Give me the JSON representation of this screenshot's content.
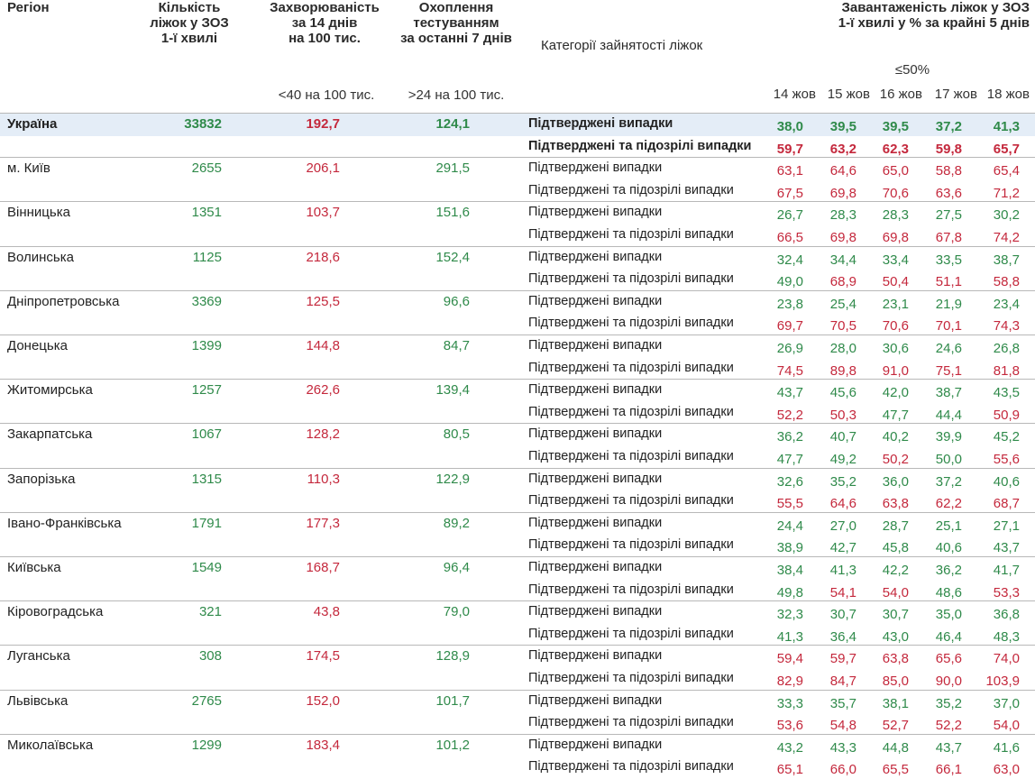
{
  "header": {
    "region": "Регіон",
    "beds": [
      "Кількість",
      "ліжок у ЗОЗ",
      "1-ї хвилі"
    ],
    "incidence": [
      "Захворюваність",
      "за 14 днів",
      "на 100 тис."
    ],
    "testing": [
      "Охоплення",
      "тестуванням",
      "за останні 7 днів"
    ],
    "category": "Категорії зайнятості ліжок",
    "load": [
      "Завантаженість ліжок у ЗОЗ",
      "1-ї хвилі у % за крайні 5 днів"
    ],
    "incidence_threshold": {
      "value": 40,
      "label": "<40 на 100 тис."
    },
    "testing_threshold": {
      "value": 24,
      "label": ">24 на 100 тис."
    },
    "load_threshold": {
      "value": 50,
      "label": "≤50%"
    },
    "dates": [
      "14 жов",
      "15 жов",
      "16 жов",
      "17 жов",
      "18 жов"
    ]
  },
  "colors": {
    "good": "#2f8a4a",
    "bad": "#c4283c"
  },
  "categories": [
    "Підтверджені випадки",
    "Підтверджені та підозрілі випадки"
  ],
  "table": {
    "rows": [
      {
        "region": "Україна",
        "beds": "33832",
        "incidence": "192,7",
        "testing": "124,1",
        "load": [
          [
            "38,0",
            "39,5",
            "39,5",
            "37,2",
            "41,3"
          ],
          [
            "59,7",
            "63,2",
            "62,3",
            "59,8",
            "65,7"
          ]
        ]
      },
      {
        "region": "м. Київ",
        "beds": "2655",
        "incidence": "206,1",
        "testing": "291,5",
        "load": [
          [
            "63,1",
            "64,6",
            "65,0",
            "58,8",
            "65,4"
          ],
          [
            "67,5",
            "69,8",
            "70,6",
            "63,6",
            "71,2"
          ]
        ]
      },
      {
        "region": "Вінницька",
        "beds": "1351",
        "incidence": "103,7",
        "testing": "151,6",
        "load": [
          [
            "26,7",
            "28,3",
            "28,3",
            "27,5",
            "30,2"
          ],
          [
            "66,5",
            "69,8",
            "69,8",
            "67,8",
            "74,2"
          ]
        ]
      },
      {
        "region": "Волинська",
        "beds": "1125",
        "incidence": "218,6",
        "testing": "152,4",
        "load": [
          [
            "32,4",
            "34,4",
            "33,4",
            "33,5",
            "38,7"
          ],
          [
            "49,0",
            "68,9",
            "50,4",
            "51,1",
            "58,8"
          ]
        ]
      },
      {
        "region": "Дніпропетровська",
        "beds": "3369",
        "incidence": "125,5",
        "testing": "96,6",
        "load": [
          [
            "23,8",
            "25,4",
            "23,1",
            "21,9",
            "23,4"
          ],
          [
            "69,7",
            "70,5",
            "70,6",
            "70,1",
            "74,3"
          ]
        ]
      },
      {
        "region": "Донецька",
        "beds": "1399",
        "incidence": "144,8",
        "testing": "84,7",
        "load": [
          [
            "26,9",
            "28,0",
            "30,6",
            "24,6",
            "26,8"
          ],
          [
            "74,5",
            "89,8",
            "91,0",
            "75,1",
            "81,8"
          ]
        ]
      },
      {
        "region": "Житомирська",
        "beds": "1257",
        "incidence": "262,6",
        "testing": "139,4",
        "load": [
          [
            "43,7",
            "45,6",
            "42,0",
            "38,7",
            "43,5"
          ],
          [
            "52,2",
            "50,3",
            "47,7",
            "44,4",
            "50,9"
          ]
        ]
      },
      {
        "region": "Закарпатська",
        "beds": "1067",
        "incidence": "128,2",
        "testing": "80,5",
        "load": [
          [
            "36,2",
            "40,7",
            "40,2",
            "39,9",
            "45,2"
          ],
          [
            "47,7",
            "49,2",
            "50,2",
            "50,0",
            "55,6"
          ]
        ]
      },
      {
        "region": "Запорізька",
        "beds": "1315",
        "incidence": "110,3",
        "testing": "122,9",
        "load": [
          [
            "32,6",
            "35,2",
            "36,0",
            "37,2",
            "40,6"
          ],
          [
            "55,5",
            "64,6",
            "63,8",
            "62,2",
            "68,7"
          ]
        ]
      },
      {
        "region": "Івано-Франківська",
        "beds": "1791",
        "incidence": "177,3",
        "testing": "89,2",
        "load": [
          [
            "24,4",
            "27,0",
            "28,7",
            "25,1",
            "27,1"
          ],
          [
            "38,9",
            "42,7",
            "45,8",
            "40,6",
            "43,7"
          ]
        ]
      },
      {
        "region": "Київська",
        "beds": "1549",
        "incidence": "168,7",
        "testing": "96,4",
        "load": [
          [
            "38,4",
            "41,3",
            "42,2",
            "36,2",
            "41,7"
          ],
          [
            "49,8",
            "54,1",
            "54,0",
            "48,6",
            "53,3"
          ]
        ]
      },
      {
        "region": "Кіровоградська",
        "beds": "321",
        "incidence": "43,8",
        "testing": "79,0",
        "load": [
          [
            "32,3",
            "30,7",
            "30,7",
            "35,0",
            "36,8"
          ],
          [
            "41,3",
            "36,4",
            "43,0",
            "46,4",
            "48,3"
          ]
        ]
      },
      {
        "region": "Луганська",
        "beds": "308",
        "incidence": "174,5",
        "testing": "128,9",
        "load": [
          [
            "59,4",
            "59,7",
            "63,8",
            "65,6",
            "74,0"
          ],
          [
            "82,9",
            "84,7",
            "85,0",
            "90,0",
            "103,9"
          ]
        ]
      },
      {
        "region": "Львівська",
        "beds": "2765",
        "incidence": "152,0",
        "testing": "101,7",
        "load": [
          [
            "33,3",
            "35,7",
            "38,1",
            "35,2",
            "37,0"
          ],
          [
            "53,6",
            "54,8",
            "52,7",
            "52,2",
            "54,0"
          ]
        ]
      },
      {
        "region": "Миколаївська",
        "beds": "1299",
        "incidence": "183,4",
        "testing": "101,2",
        "load": [
          [
            "43,2",
            "43,3",
            "44,8",
            "43,7",
            "41,6"
          ],
          [
            "65,1",
            "66,0",
            "65,5",
            "66,1",
            "63,0"
          ]
        ]
      }
    ]
  }
}
